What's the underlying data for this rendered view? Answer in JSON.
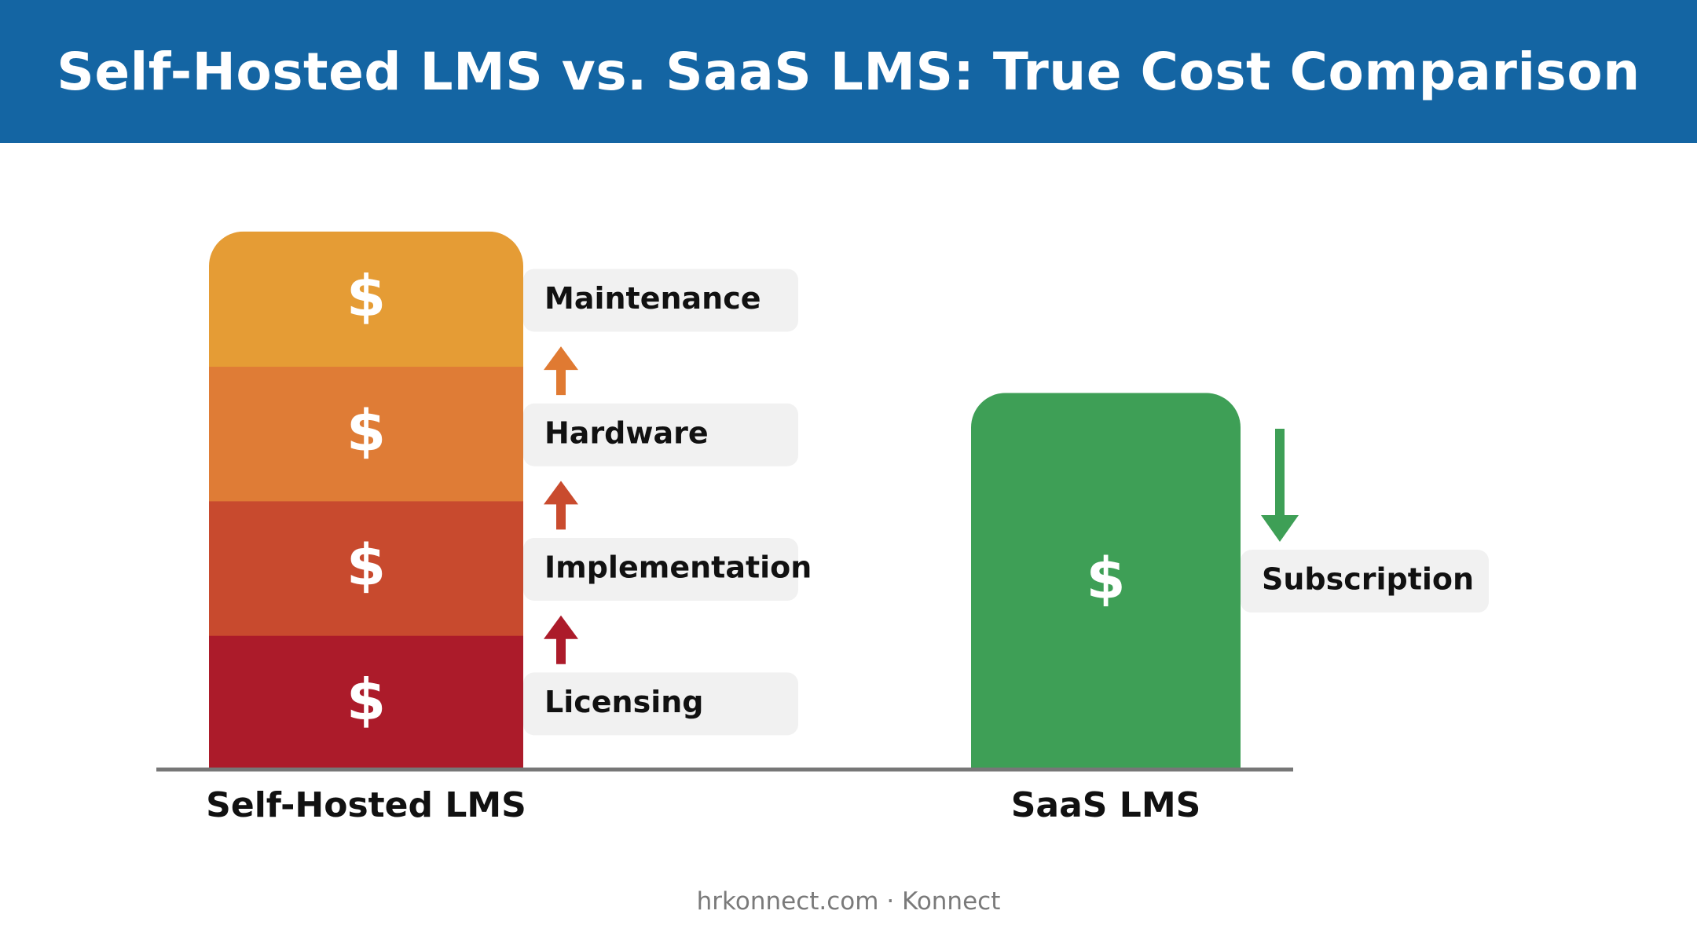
{
  "header": {
    "title": "Self-Hosted LMS vs. SaaS LMS: True Cost Comparison",
    "background": "#1465a3"
  },
  "footer": {
    "text": "hrkonnect.com · Konnect"
  },
  "chart_data": {
    "type": "bar",
    "title": "Self-Hosted LMS vs. SaaS LMS: True Cost Comparison",
    "xlabel": "",
    "ylabel": "",
    "grid": false,
    "categories": [
      "Self-Hosted LMS",
      "SaaS LMS"
    ],
    "series": [
      {
        "name": "Licensing",
        "values": [
          1,
          0
        ],
        "color": "#ac1b2a",
        "arrow_color": "#ac1b2a"
      },
      {
        "name": "Implementation",
        "values": [
          1,
          0
        ],
        "color": "#c84a2e",
        "arrow_color": "#c94b2e"
      },
      {
        "name": "Hardware",
        "values": [
          1,
          0
        ],
        "color": "#df7c36",
        "arrow_color": "#e07a32"
      },
      {
        "name": "Maintenance",
        "values": [
          1,
          0
        ],
        "color": "#e59c35",
        "arrow_color": "#e38a33"
      },
      {
        "name": "Subscription",
        "values": [
          0,
          2.8
        ],
        "color": "#3e9f56",
        "arrow_color": "#3e9f56"
      }
    ],
    "segment_symbol": "$",
    "ylim": [
      0,
      4.1
    ],
    "label_box_color": "#f1f1f1",
    "axis_color": "#777777"
  }
}
